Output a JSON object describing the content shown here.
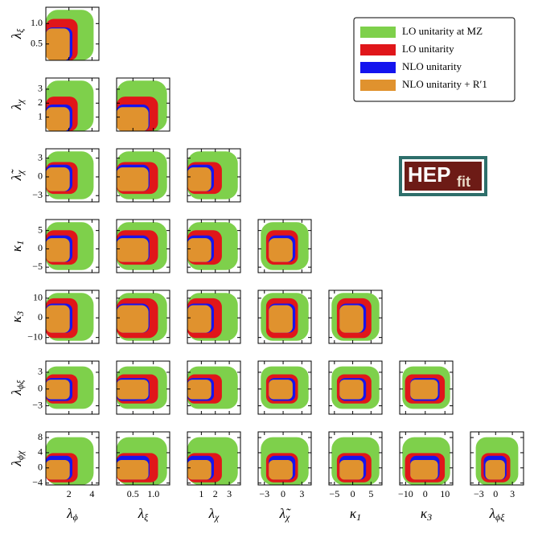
{
  "chart_data": {
    "type": "corner",
    "variables": [
      {
        "symbol": "λ",
        "sub": "ϕ",
        "lim": [
          0,
          4.6
        ],
        "ticks": [
          2,
          4
        ]
      },
      {
        "symbol": "λ",
        "sub": "ξ",
        "lim": [
          0.1,
          1.4
        ],
        "ticks": [
          0.5,
          {
            "value": 1,
            "label": "1.0"
          }
        ]
      },
      {
        "symbol": "λ",
        "sub": "χ",
        "lim": [
          0,
          3.8
        ],
        "ticks": [
          1,
          2,
          3
        ]
      },
      {
        "symbol": "λ̃",
        "sub": "χ",
        "lim": [
          -4,
          4.5
        ],
        "ticks": [
          {
            "value": -3,
            "label": "−3"
          },
          0,
          3
        ]
      },
      {
        "symbol": "κ",
        "sub": "1",
        "lim": [
          -6.5,
          8
        ],
        "ticks": [
          {
            "value": -5,
            "label": "−5"
          },
          0,
          5
        ]
      },
      {
        "symbol": "κ",
        "sub": "3",
        "lim": [
          -13,
          14
        ],
        "ticks": [
          {
            "value": -10,
            "label": "−10"
          },
          0,
          10
        ]
      },
      {
        "symbol": "λ",
        "sub": "ϕξ",
        "lim": [
          -4.5,
          5
        ],
        "ticks": [
          {
            "value": -3,
            "label": "−3"
          },
          0,
          3
        ]
      },
      {
        "symbol": "λ",
        "sub": "ϕχ",
        "lim": [
          -4.5,
          9.5
        ],
        "ticks": [
          {
            "value": -4,
            "label": "−4"
          },
          0,
          4,
          8
        ]
      }
    ],
    "series": [
      {
        "name": "LO unitarity at MZ",
        "color": "#7ed04b"
      },
      {
        "name": "LO unitarity",
        "color": "#e0161a"
      },
      {
        "name": "NLO unitarity",
        "color": "#1414ee"
      },
      {
        "name": "NLO unitarity + R′1",
        "color": "#e0922e"
      }
    ],
    "legend": "upper right"
  },
  "logo": {
    "main": "HEP",
    "sub": "fit"
  }
}
